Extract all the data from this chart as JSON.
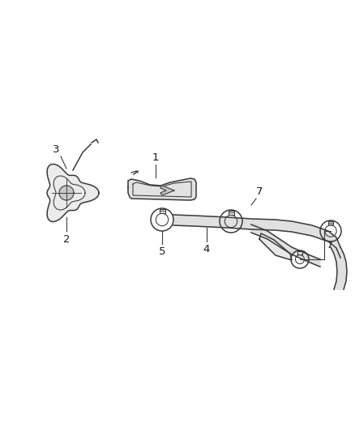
{
  "background_color": "#ffffff",
  "line_color": "#3a3a3a",
  "label_color": "#1a1a1a",
  "figsize": [
    4.38,
    5.33
  ],
  "dpi": 100
}
